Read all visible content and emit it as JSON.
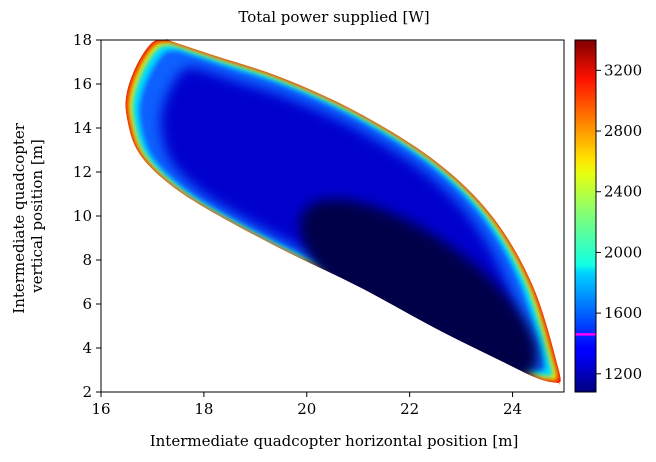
{
  "chart_data": {
    "type": "heatmap",
    "title": "Total power supplied [W]",
    "xlabel": "Intermediate quadcopter horizontal position [m]",
    "ylabel": [
      "Intermediate quadcopter",
      "vertical position [m]"
    ],
    "xlim": [
      16,
      25
    ],
    "ylim": [
      2,
      18
    ],
    "xticks": [
      16,
      18,
      20,
      22,
      24
    ],
    "yticks": [
      2,
      4,
      6,
      8,
      10,
      12,
      14,
      16,
      18
    ],
    "colorbar": {
      "colormap": "jet",
      "range": [
        1080,
        3400
      ],
      "ticks": [
        1200,
        1600,
        2000,
        2400,
        2800,
        3200
      ],
      "tick_labels": [
        "1200",
        "1600",
        "2000",
        "2400",
        "2800",
        "3200"
      ],
      "marker_value": 1460,
      "marker_color": "#ff00ff"
    },
    "feasible_region": {
      "upper_boundary": [
        [
          17.3,
          18.0
        ],
        [
          18.2,
          17.3
        ],
        [
          19.5,
          16.3
        ],
        [
          21.0,
          14.7
        ],
        [
          22.5,
          12.5
        ],
        [
          23.6,
          10.0
        ],
        [
          24.4,
          6.8
        ],
        [
          24.9,
          3.0
        ],
        [
          24.9,
          2.4
        ]
      ],
      "lower_boundary": [
        [
          17.3,
          18.0
        ],
        [
          17.0,
          17.9
        ],
        [
          16.7,
          16.9
        ],
        [
          16.5,
          15.6
        ],
        [
          16.5,
          14.5
        ],
        [
          16.7,
          13.0
        ],
        [
          17.2,
          11.7
        ],
        [
          18.0,
          10.4
        ],
        [
          19.5,
          8.5
        ],
        [
          21.0,
          6.8
        ],
        [
          22.5,
          4.9
        ],
        [
          23.7,
          3.5
        ],
        [
          24.5,
          2.6
        ],
        [
          24.9,
          2.4
        ]
      ],
      "minimum_location": [
        24.0,
        3.3
      ],
      "minimum_value": 1100,
      "boundary_value": 3300
    },
    "grid": false
  }
}
